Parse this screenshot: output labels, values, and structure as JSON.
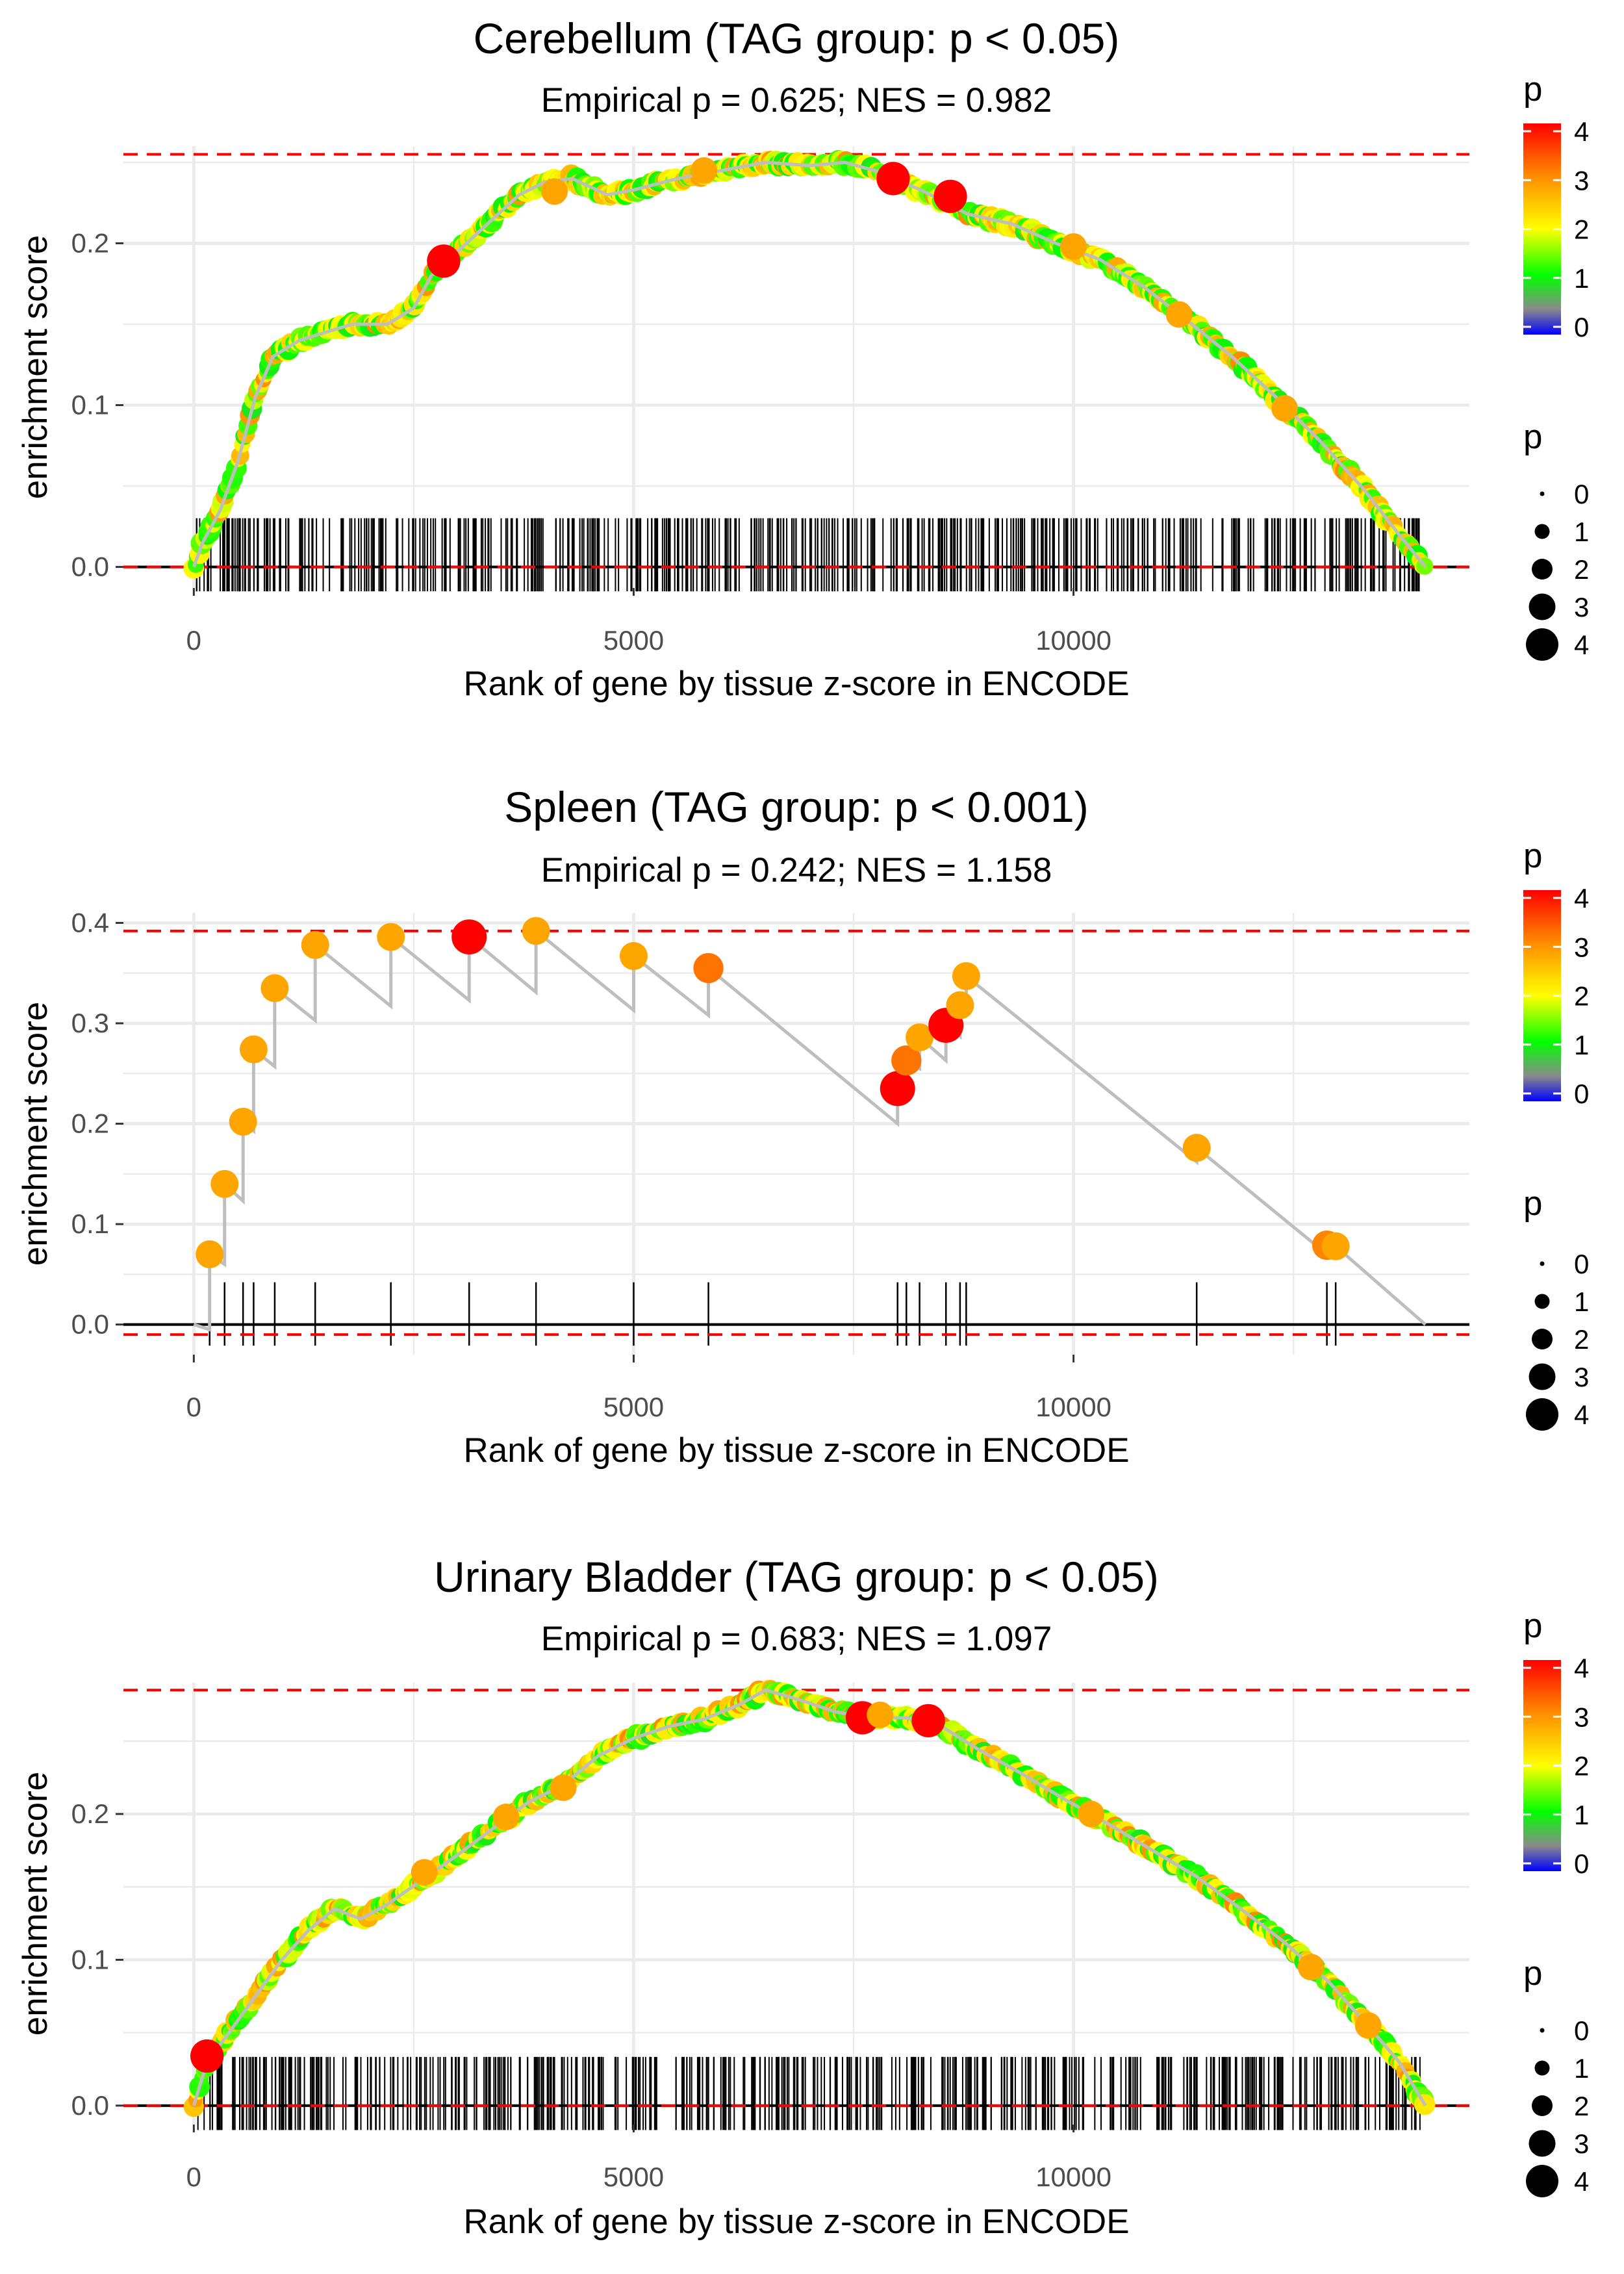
{
  "chart_data": [
    {
      "type": "line",
      "title": "Cerebellum (TAG group: p < 0.05)",
      "subtitle": "Empirical p = 0.625; NES = 0.982",
      "xlabel": "Rank of gene by tissue z-score in ENCODE",
      "ylabel": "enrichment score",
      "xlim": [
        -800,
        14500
      ],
      "ylim": [
        -0.013,
        0.26
      ],
      "x_ticks": [
        0,
        5000,
        10000
      ],
      "x_tick_labels": [
        "0",
        "5000",
        "10000"
      ],
      "y_ticks": [
        0.0,
        0.1,
        0.2
      ],
      "y_tick_labels": [
        "0.0",
        "0.1",
        "0.2"
      ],
      "max_es": 0.255,
      "min_es": 0.0,
      "dense": true,
      "n_hits": 500,
      "seed": 11,
      "curve": [
        [
          0,
          0
        ],
        [
          100,
          0.015
        ],
        [
          300,
          0.035
        ],
        [
          500,
          0.065
        ],
        [
          700,
          0.105
        ],
        [
          900,
          0.13
        ],
        [
          1200,
          0.14
        ],
        [
          1500,
          0.145
        ],
        [
          1800,
          0.15
        ],
        [
          2200,
          0.15
        ],
        [
          2500,
          0.16
        ],
        [
          2700,
          0.18
        ],
        [
          3000,
          0.195
        ],
        [
          3300,
          0.21
        ],
        [
          3700,
          0.23
        ],
        [
          4000,
          0.238
        ],
        [
          4300,
          0.24
        ],
        [
          4700,
          0.23
        ],
        [
          5000,
          0.233
        ],
        [
          5500,
          0.24
        ],
        [
          6000,
          0.245
        ],
        [
          6500,
          0.25
        ],
        [
          7000,
          0.248
        ],
        [
          7400,
          0.25
        ],
        [
          7800,
          0.244
        ],
        [
          8300,
          0.232
        ],
        [
          8800,
          0.218
        ],
        [
          9300,
          0.212
        ],
        [
          9800,
          0.2
        ],
        [
          10300,
          0.19
        ],
        [
          10800,
          0.173
        ],
        [
          11300,
          0.152
        ],
        [
          11800,
          0.13
        ],
        [
          12300,
          0.105
        ],
        [
          12800,
          0.078
        ],
        [
          13300,
          0.048
        ],
        [
          13700,
          0.02
        ],
        [
          14000,
          0
        ]
      ],
      "highlights": [
        [
          2840,
          0.189,
          4
        ],
        [
          7950,
          0.24,
          4
        ],
        [
          8600,
          0.229,
          4
        ],
        [
          4100,
          0.232,
          3
        ],
        [
          5800,
          0.245,
          3
        ],
        [
          10000,
          0.198,
          3
        ],
        [
          12400,
          0.098,
          3
        ],
        [
          11200,
          0.156,
          3
        ]
      ],
      "legend": {
        "color_title": "p",
        "color_ticks": [
          "4",
          "3",
          "2",
          "1",
          "0"
        ],
        "size_title": "p",
        "size_labels": [
          "0",
          "1",
          "2",
          "3",
          "4"
        ]
      }
    },
    {
      "type": "line",
      "title": "Spleen (TAG group: p < 0.001)",
      "subtitle": "Empirical p = 0.242; NES = 1.158",
      "xlabel": "Rank of gene by tissue z-score in ENCODE",
      "ylabel": "enrichment score",
      "xlim": [
        -800,
        14500
      ],
      "ylim": [
        -0.03,
        0.41
      ],
      "x_ticks": [
        0,
        5000,
        10000
      ],
      "x_tick_labels": [
        "0",
        "5000",
        "10000"
      ],
      "y_ticks": [
        0.0,
        0.1,
        0.2,
        0.3,
        0.4
      ],
      "y_tick_labels": [
        "0.0",
        "0.1",
        "0.2",
        "0.3",
        "0.4"
      ],
      "max_es": 0.392,
      "min_es": -0.01,
      "dense": false,
      "curve": [
        [
          0,
          0
        ],
        [
          180,
          -0.005
        ],
        [
          180,
          0.07
        ],
        [
          350,
          0.06
        ],
        [
          350,
          0.14
        ],
        [
          560,
          0.123
        ],
        [
          560,
          0.202
        ],
        [
          680,
          0.193
        ],
        [
          680,
          0.274
        ],
        [
          920,
          0.257
        ],
        [
          920,
          0.335
        ],
        [
          1380,
          0.303
        ],
        [
          1380,
          0.378
        ],
        [
          2240,
          0.317
        ],
        [
          2240,
          0.386
        ],
        [
          3130,
          0.323
        ],
        [
          3130,
          0.386
        ],
        [
          3890,
          0.331
        ],
        [
          3890,
          0.392
        ],
        [
          5000,
          0.313
        ],
        [
          5000,
          0.367
        ],
        [
          5850,
          0.308
        ],
        [
          5850,
          0.355
        ],
        [
          8000,
          0.2
        ],
        [
          8000,
          0.235
        ],
        [
          8100,
          0.227
        ],
        [
          8100,
          0.263
        ],
        [
          8250,
          0.255
        ],
        [
          8250,
          0.286
        ],
        [
          8550,
          0.263
        ],
        [
          8550,
          0.298
        ],
        [
          8710,
          0.287
        ],
        [
          8710,
          0.318
        ],
        [
          8780,
          0.313
        ],
        [
          8780,
          0.347
        ],
        [
          11400,
          0.162
        ],
        [
          11400,
          0.176
        ],
        [
          12880,
          0.07
        ],
        [
          12880,
          0.079
        ],
        [
          12980,
          0.071
        ],
        [
          12980,
          0.078
        ],
        [
          14000,
          0
        ]
      ],
      "points": [
        [
          180,
          0.07,
          3
        ],
        [
          350,
          0.14,
          3
        ],
        [
          560,
          0.202,
          3
        ],
        [
          680,
          0.274,
          3
        ],
        [
          920,
          0.335,
          3
        ],
        [
          1380,
          0.378,
          3
        ],
        [
          2240,
          0.386,
          3
        ],
        [
          3130,
          0.386,
          4
        ],
        [
          3890,
          0.392,
          3
        ],
        [
          5000,
          0.367,
          3
        ],
        [
          5850,
          0.355,
          3.3
        ],
        [
          8000,
          0.235,
          4
        ],
        [
          8100,
          0.263,
          3.3
        ],
        [
          8250,
          0.286,
          3
        ],
        [
          8550,
          0.298,
          4
        ],
        [
          8710,
          0.318,
          3
        ],
        [
          8780,
          0.347,
          3
        ],
        [
          11400,
          0.176,
          3
        ],
        [
          12880,
          0.079,
          3.2
        ],
        [
          12980,
          0.078,
          3
        ]
      ],
      "hits": [
        180,
        350,
        560,
        680,
        920,
        1380,
        2240,
        3130,
        3890,
        5000,
        5850,
        8000,
        8100,
        8250,
        8550,
        8710,
        8780,
        11400,
        12880,
        12980
      ],
      "legend": {
        "color_title": "p",
        "color_ticks": [
          "4",
          "3",
          "2",
          "1",
          "0"
        ],
        "size_title": "p",
        "size_labels": [
          "0",
          "1",
          "2",
          "3",
          "4"
        ]
      }
    },
    {
      "type": "line",
      "title": "Urinary Bladder (TAG group: p < 0.05)",
      "subtitle": "Empirical p = 0.683; NES = 1.097",
      "xlabel": "Rank of gene by tissue z-score in ENCODE",
      "ylabel": "enrichment score",
      "xlim": [
        -800,
        14500
      ],
      "ylim": [
        -0.013,
        0.29
      ],
      "x_ticks": [
        0,
        5000,
        10000
      ],
      "x_tick_labels": [
        "0",
        "5000",
        "10000"
      ],
      "y_ticks": [
        0.0,
        0.1,
        0.2
      ],
      "y_tick_labels": [
        "0.0",
        "0.1",
        "0.2"
      ],
      "max_es": 0.285,
      "min_es": 0.0,
      "dense": true,
      "n_hits": 520,
      "seed": 37,
      "curve": [
        [
          0,
          0
        ],
        [
          150,
          0.03
        ],
        [
          400,
          0.05
        ],
        [
          700,
          0.075
        ],
        [
          1000,
          0.1
        ],
        [
          1300,
          0.12
        ],
        [
          1600,
          0.135
        ],
        [
          1900,
          0.128
        ],
        [
          2200,
          0.138
        ],
        [
          2600,
          0.155
        ],
        [
          3000,
          0.172
        ],
        [
          3400,
          0.19
        ],
        [
          3800,
          0.208
        ],
        [
          4200,
          0.22
        ],
        [
          4600,
          0.24
        ],
        [
          5000,
          0.252
        ],
        [
          5400,
          0.26
        ],
        [
          5800,
          0.265
        ],
        [
          6200,
          0.275
        ],
        [
          6500,
          0.285
        ],
        [
          6900,
          0.278
        ],
        [
          7300,
          0.27
        ],
        [
          7700,
          0.266
        ],
        [
          8100,
          0.266
        ],
        [
          8500,
          0.26
        ],
        [
          8900,
          0.245
        ],
        [
          9400,
          0.228
        ],
        [
          9900,
          0.21
        ],
        [
          10400,
          0.193
        ],
        [
          10900,
          0.175
        ],
        [
          11400,
          0.157
        ],
        [
          11900,
          0.135
        ],
        [
          12400,
          0.112
        ],
        [
          12900,
          0.085
        ],
        [
          13300,
          0.058
        ],
        [
          13700,
          0.03
        ],
        [
          14000,
          0
        ]
      ],
      "highlights": [
        [
          150,
          0.034,
          4
        ],
        [
          7600,
          0.266,
          4
        ],
        [
          8350,
          0.264,
          4
        ],
        [
          7800,
          0.268,
          3
        ],
        [
          2620,
          0.16,
          3
        ],
        [
          4200,
          0.218,
          3
        ],
        [
          3550,
          0.198,
          3
        ],
        [
          10200,
          0.2,
          3
        ],
        [
          12700,
          0.095,
          3
        ],
        [
          13350,
          0.055,
          3
        ]
      ],
      "legend": {
        "color_title": "p",
        "color_ticks": [
          "4",
          "3",
          "2",
          "1",
          "0"
        ],
        "size_title": "p",
        "size_labels": [
          "0",
          "1",
          "2",
          "3",
          "4"
        ]
      }
    }
  ],
  "colors": {
    "gradient": [
      "#0000ff",
      "#8a8a8a",
      "#00ff00",
      "#ffff00",
      "#ff8c00",
      "#ff0000"
    ],
    "reference_line": "#ff0000",
    "running_line": "#bebebe",
    "gridline": "#ebebeb"
  }
}
